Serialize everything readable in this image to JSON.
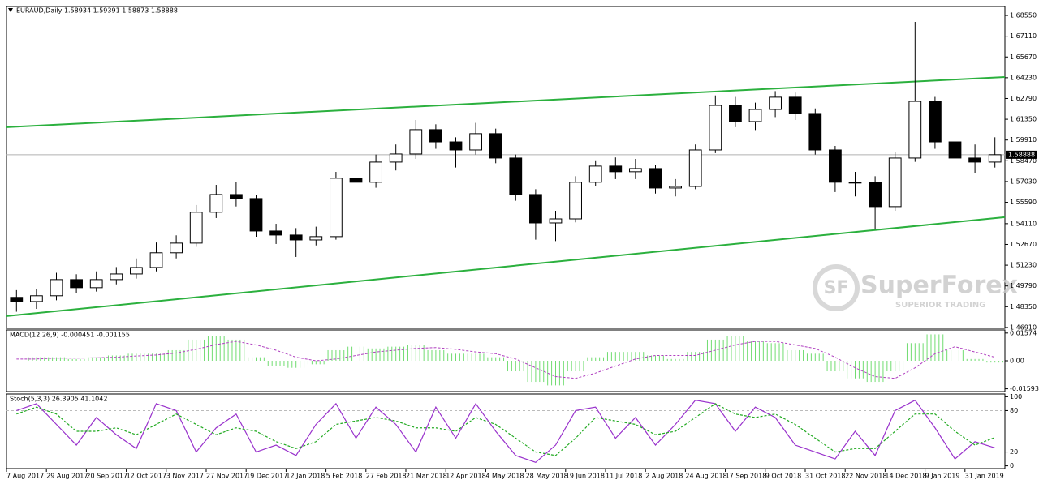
{
  "chart_data": [
    {
      "type": "candlestick",
      "title": "EURAUD,Daily  1.58934 1.59391 1.58873 1.58888",
      "categories": [
        "7 Aug 2017",
        null,
        "29 Aug 2017",
        null,
        "20 Sep 2017",
        null,
        "12 Oct 2017",
        null,
        "3 Nov 2017",
        null,
        "27 Nov 2017",
        null,
        "19 Dec 2017",
        null,
        "12 Jan 2018",
        null,
        "5 Feb 2018",
        null,
        "27 Feb 2018",
        null,
        "21 Mar 2018",
        null,
        "12 Apr 2018",
        null,
        "4 May 2018",
        null,
        "28 May 2018",
        null,
        "19 Jun 2018",
        null,
        "11 Jul 2018",
        null,
        "2 Aug 2018",
        null,
        "24 Aug 2018",
        null,
        "17 Sep 2018",
        null,
        "9 Oct 2018",
        null,
        "31 Oct 2018",
        null,
        "22 Nov 2018",
        null,
        "14 Dec 2018",
        null,
        "9 Jan 2019",
        null,
        "31 Jan 2019",
        null
      ],
      "open": [
        1.49,
        1.4871,
        1.4911,
        1.5023,
        1.4967,
        1.5023,
        1.5062,
        1.5107,
        1.5209,
        1.5276,
        1.549,
        1.5613,
        1.5585,
        1.536,
        1.5332,
        1.5298,
        1.5321,
        1.5726,
        1.5698,
        1.5838,
        1.5894,
        1.6063,
        1.5978,
        1.5922,
        1.6035,
        1.5866,
        1.5613,
        1.5416,
        1.5444,
        1.5698,
        1.581,
        1.5771,
        1.5793,
        1.5658,
        1.5669,
        1.5922,
        1.6231,
        1.6119,
        1.6203,
        1.6288,
        1.6175,
        1.5922,
        1.5698,
        1.5698,
        1.5529,
        1.5866,
        1.6259,
        1.5978,
        1.5866,
        1.5838
      ],
      "high": [
        1.495,
        1.496,
        1.507,
        1.506,
        1.508,
        1.511,
        1.517,
        1.528,
        1.533,
        1.554,
        1.568,
        1.57,
        1.561,
        1.541,
        1.538,
        1.539,
        1.577,
        1.579,
        1.589,
        1.596,
        1.613,
        1.61,
        1.601,
        1.611,
        1.607,
        1.589,
        1.565,
        1.55,
        1.574,
        1.585,
        1.587,
        1.586,
        1.582,
        1.572,
        1.596,
        1.63,
        1.629,
        1.625,
        1.633,
        1.632,
        1.621,
        1.595,
        1.577,
        1.574,
        1.591,
        1.681,
        1.629,
        1.601,
        1.596,
        1.601
      ],
      "low": [
        1.48,
        1.482,
        1.488,
        1.493,
        1.494,
        1.499,
        1.503,
        1.508,
        1.517,
        1.525,
        1.545,
        1.553,
        1.532,
        1.527,
        1.518,
        1.526,
        1.53,
        1.564,
        1.566,
        1.578,
        1.586,
        1.593,
        1.58,
        1.589,
        1.583,
        1.557,
        1.53,
        1.529,
        1.542,
        1.567,
        1.572,
        1.572,
        1.562,
        1.56,
        1.565,
        1.59,
        1.608,
        1.606,
        1.615,
        1.613,
        1.589,
        1.563,
        1.56,
        1.537,
        1.55,
        1.584,
        1.593,
        1.579,
        1.576,
        1.58
      ],
      "close": [
        1.4871,
        1.4911,
        1.5023,
        1.4967,
        1.5023,
        1.5062,
        1.5107,
        1.5209,
        1.5276,
        1.549,
        1.5613,
        1.5585,
        1.536,
        1.5332,
        1.5298,
        1.5321,
        1.5726,
        1.5698,
        1.5838,
        1.5894,
        1.6063,
        1.5978,
        1.5922,
        1.6035,
        1.5866,
        1.5613,
        1.5416,
        1.5444,
        1.5698,
        1.581,
        1.5771,
        1.5793,
        1.5658,
        1.5669,
        1.5922,
        1.6231,
        1.6119,
        1.6203,
        1.6288,
        1.6175,
        1.5922,
        1.5698,
        1.5698,
        1.5529,
        1.5866,
        1.6259,
        1.5978,
        1.5866,
        1.5838,
        1.5889
      ],
      "color": "#000000",
      "ylim": [
        1.4685,
        1.6917
      ],
      "yticks": [
        {
          "value": 1.6855,
          "label": "1.68550"
        },
        {
          "value": 1.6711,
          "label": "1.67110"
        },
        {
          "value": 1.6567,
          "label": "1.65670"
        },
        {
          "value": 1.6423,
          "label": "1.64230"
        },
        {
          "value": 1.6279,
          "label": "1.62790"
        },
        {
          "value": 1.6135,
          "label": "1.61350"
        },
        {
          "value": 1.5991,
          "label": "1.59910"
        },
        {
          "value": 1.5847,
          "label": "1.58470"
        },
        {
          "value": 1.5703,
          "label": "1.57030"
        },
        {
          "value": 1.5559,
          "label": "1.55590"
        },
        {
          "value": 1.5411,
          "label": "1.54110"
        },
        {
          "value": 1.5267,
          "label": "1.52670"
        },
        {
          "value": 1.5123,
          "label": "1.51230"
        },
        {
          "value": 1.4979,
          "label": "1.49790"
        },
        {
          "value": 1.4835,
          "label": "1.48350"
        },
        {
          "value": 1.4691,
          "label": "1.46910"
        }
      ],
      "current_price": {
        "value": 1.58888,
        "label": "1.58888"
      },
      "trendlines": [
        {
          "values": [
            1.608,
            1.6428
          ],
          "color": "#2bb03e"
        },
        {
          "values": [
            1.477,
            1.5456
          ],
          "color": "#2bb03e"
        }
      ],
      "grid": false
    },
    {
      "type": "macd",
      "title": "MACD(12,26,9) -0.000451 -0.001155",
      "histogram": {
        "color": "#70dc70",
        "values": [
          0.0,
          0.002,
          0.002,
          0.001,
          0.002,
          0.003,
          0.004,
          0.004,
          0.006,
          0.012,
          0.014,
          0.012,
          0.002,
          -0.003,
          -0.004,
          -0.002,
          0.006,
          0.008,
          0.007,
          0.008,
          0.009,
          0.006,
          0.004,
          0.004,
          0.002,
          -0.006,
          -0.012,
          -0.014,
          -0.006,
          0.002,
          0.005,
          0.005,
          0.003,
          0.001,
          0.005,
          0.012,
          0.014,
          0.011,
          0.01,
          0.006,
          0.004,
          -0.006,
          -0.01,
          -0.012,
          -0.006,
          0.01,
          0.015,
          0.006,
          0.001,
          -0.001
        ]
      },
      "signal": {
        "color": "#b040c0",
        "values": [
          0.001,
          0.001,
          0.0015,
          0.0015,
          0.0017,
          0.002,
          0.0027,
          0.0033,
          0.0044,
          0.0065,
          0.0092,
          0.011,
          0.009,
          0.006,
          0.002,
          0.0,
          0.001,
          0.003,
          0.005,
          0.006,
          0.007,
          0.0075,
          0.0065,
          0.005,
          0.004,
          0.001,
          -0.004,
          -0.009,
          -0.01,
          -0.007,
          -0.003,
          0.001,
          0.003,
          0.003,
          0.003,
          0.006,
          0.009,
          0.011,
          0.011,
          0.009,
          0.007,
          0.002,
          -0.004,
          -0.009,
          -0.01,
          -0.004,
          0.004,
          0.008,
          0.005,
          0.002
        ]
      },
      "ylim": [
        -0.0175,
        0.0175
      ],
      "yticks": [
        0.01574,
        {
          "value": 0,
          "label": "0.00"
        },
        -0.01593
      ]
    },
    {
      "type": "stoch",
      "title": "Stoch(5,3,3) 26.3905 41.1042",
      "series": [
        {
          "color": "#9932cc",
          "dashed": false,
          "values": [
            80,
            90,
            60,
            30,
            70,
            45,
            25,
            90,
            80,
            20,
            55,
            75,
            20,
            30,
            15,
            60,
            90,
            40,
            85,
            60,
            20,
            85,
            40,
            90,
            50,
            15,
            5,
            30,
            80,
            85,
            40,
            70,
            30,
            60,
            95,
            90,
            50,
            85,
            70,
            30,
            20,
            10,
            50,
            15,
            80,
            95,
            55,
            10,
            35,
            26
          ]
        },
        {
          "color": "#22aa22",
          "dashed": true,
          "values": [
            75,
            85,
            75,
            50,
            50,
            55,
            45,
            60,
            75,
            60,
            45,
            55,
            50,
            35,
            25,
            35,
            60,
            65,
            70,
            65,
            55,
            55,
            50,
            70,
            60,
            40,
            20,
            15,
            40,
            70,
            65,
            60,
            45,
            50,
            70,
            90,
            75,
            70,
            75,
            60,
            40,
            20,
            25,
            25,
            50,
            75,
            75,
            50,
            30,
            41
          ]
        }
      ],
      "levels": [
        80,
        20
      ],
      "ylim": [
        -4,
        104
      ],
      "yticks": [
        100,
        80,
        20,
        0
      ]
    }
  ],
  "watermark": {
    "name": "SuperForex",
    "tagline": "SUPERIOR TRADING"
  }
}
